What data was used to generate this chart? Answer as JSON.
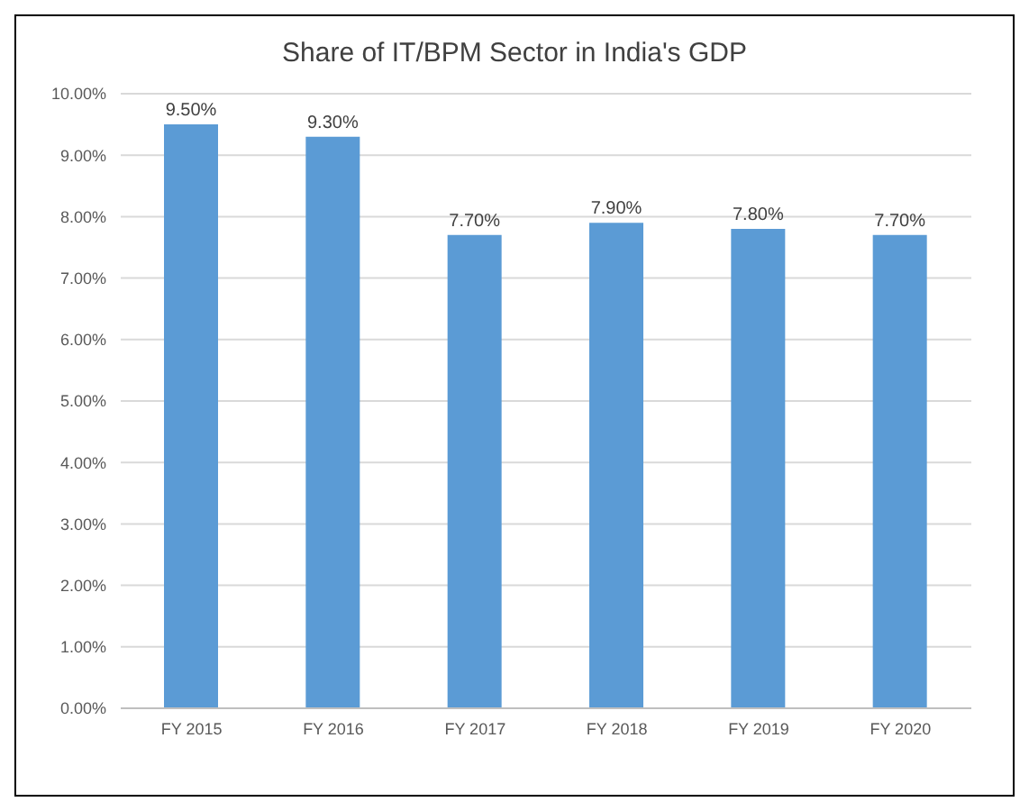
{
  "chart_data": {
    "type": "bar",
    "title": "Share of IT/BPM Sector in India's GDP",
    "categories": [
      "FY 2015",
      "FY 2016",
      "FY 2017",
      "FY 2018",
      "FY 2019",
      "FY 2020"
    ],
    "values": [
      9.5,
      9.3,
      7.7,
      7.9,
      7.8,
      7.7
    ],
    "value_labels": [
      "9.50%",
      "9.30%",
      "7.70%",
      "7.90%",
      "7.80%",
      "7.70%"
    ],
    "color": "#5b9bd5",
    "ylim": [
      0,
      10
    ],
    "yticks": [
      {
        "value": 0,
        "label": "0.00%"
      },
      {
        "value": 1,
        "label": "1.00%"
      },
      {
        "value": 2,
        "label": "2.00%"
      },
      {
        "value": 3,
        "label": "3.00%"
      },
      {
        "value": 4,
        "label": "4.00%"
      },
      {
        "value": 5,
        "label": "5.00%"
      },
      {
        "value": 6,
        "label": "6.00%"
      },
      {
        "value": 7,
        "label": "7.00%"
      },
      {
        "value": 8,
        "label": "8.00%"
      },
      {
        "value": 9,
        "label": "9.00%"
      },
      {
        "value": 10,
        "label": "10.00%"
      }
    ],
    "grid": "y"
  }
}
